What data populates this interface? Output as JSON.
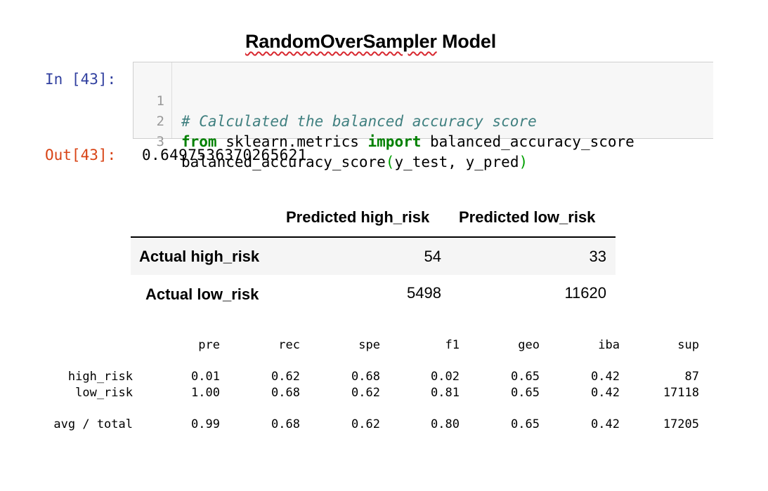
{
  "title": {
    "word1": "RandomOverSampler",
    "word2": "Model"
  },
  "cell": {
    "in_prompt": "In [43]:",
    "out_prompt": "Out[43]:",
    "lines": [
      {
        "num": "1",
        "comment": "# Calculated the balanced accuracy score"
      },
      {
        "num": "2",
        "kw1": "from",
        "mod": " sklearn.metrics ",
        "kw2": "import",
        "name": " balanced_accuracy_score"
      },
      {
        "num": "3",
        "fn": "balanced_accuracy_score",
        "lp": "(",
        "args": "y_test, y_pred",
        "rp": ")"
      }
    ],
    "output": "0.6497536370265621"
  },
  "confusion_matrix": {
    "col_headers": [
      "Predicted high_risk",
      "Predicted low_risk"
    ],
    "rows": [
      {
        "label": "Actual high_risk",
        "values": [
          "54",
          "33"
        ]
      },
      {
        "label": "Actual low_risk",
        "values": [
          "5498",
          "11620"
        ]
      }
    ]
  },
  "report": {
    "headers": [
      "pre",
      "rec",
      "spe",
      "f1",
      "geo",
      "iba",
      "sup"
    ],
    "rows": [
      {
        "label": "high_risk",
        "values": [
          "0.01",
          "0.62",
          "0.68",
          "0.02",
          "0.65",
          "0.42",
          "87"
        ]
      },
      {
        "label": "low_risk",
        "values": [
          "1.00",
          "0.68",
          "0.62",
          "0.81",
          "0.65",
          "0.42",
          "17118"
        ]
      },
      {
        "label": "avg / total",
        "values": [
          "0.99",
          "0.68",
          "0.62",
          "0.80",
          "0.65",
          "0.42",
          "17205"
        ]
      }
    ]
  },
  "colors": {
    "in_prompt": "#303f9f",
    "out_prompt": "#d84315",
    "comment": "#408080",
    "keyword": "#008000",
    "spellcheck_underline": "#d8282f"
  }
}
